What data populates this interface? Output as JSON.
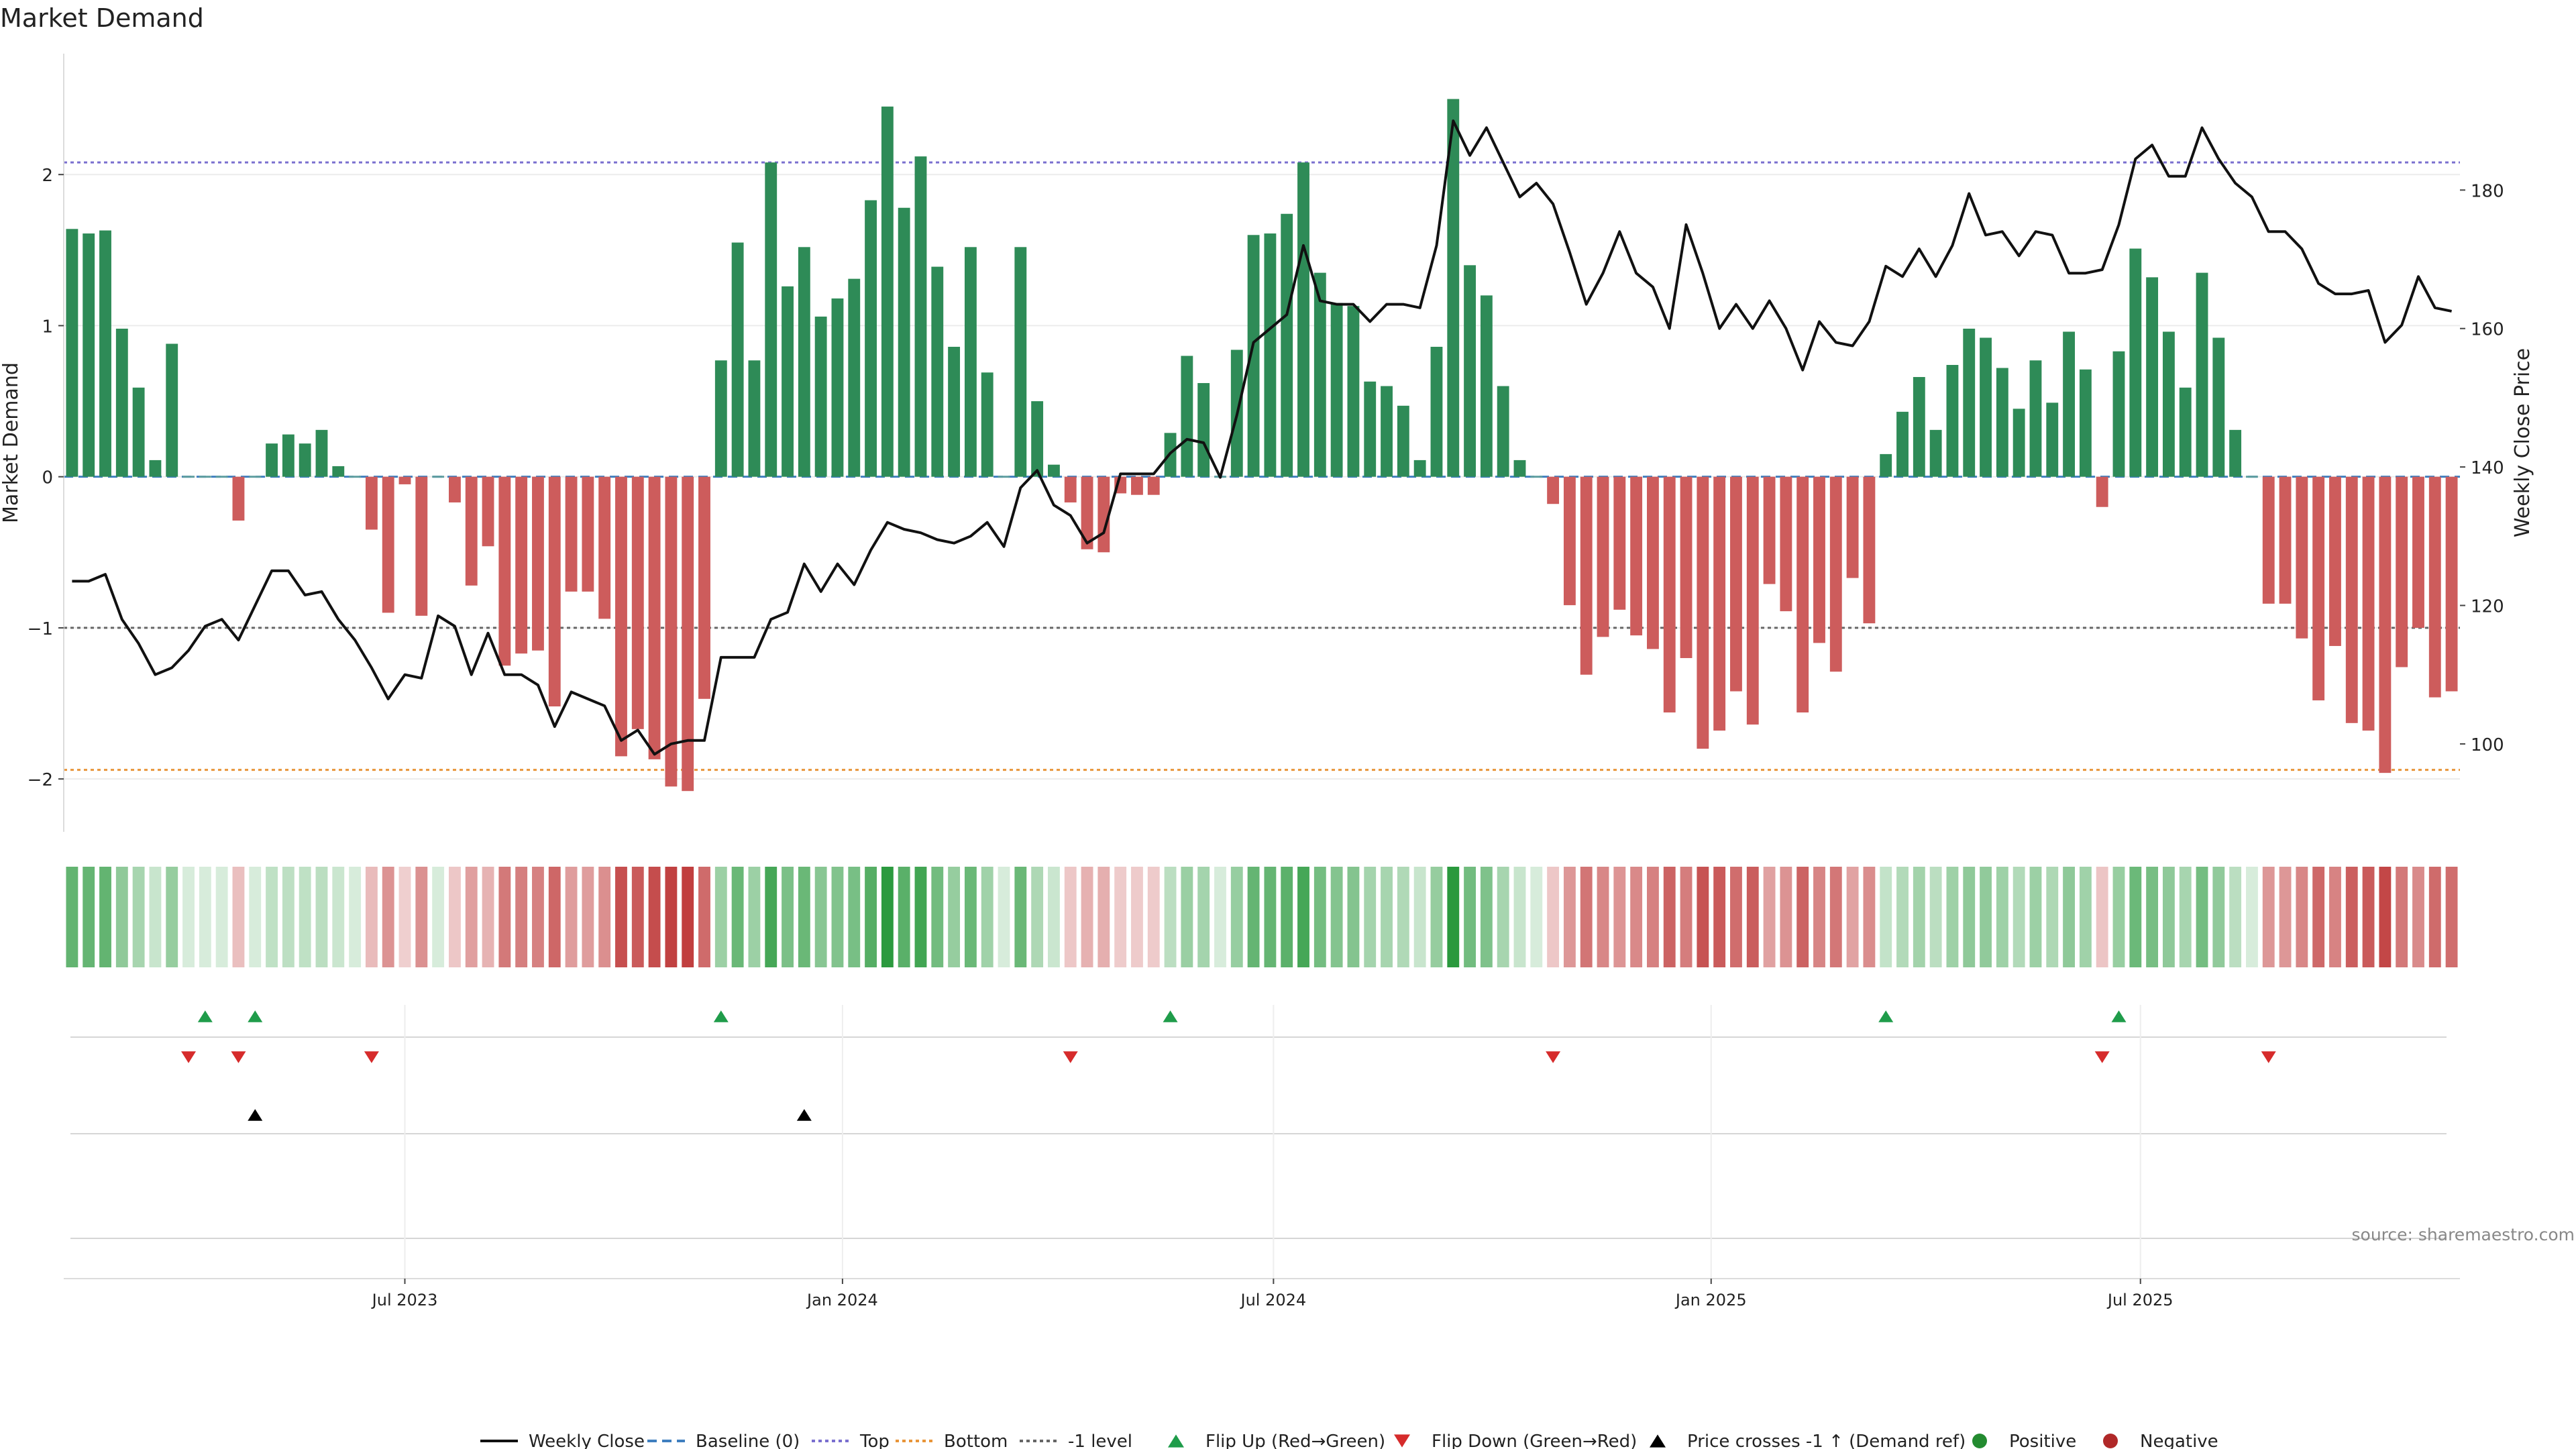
{
  "chart_data": {
    "type": "bar",
    "title": "Market Demand",
    "ylabel_left": "Market Demand",
    "ylabel_right": "Weekly Close Price",
    "source": "source: sharemaestro.com",
    "ylim_left": [
      -2.35,
      2.8
    ],
    "ylim_right": [
      87.3,
      199.7
    ],
    "yticks_left": [
      "−2",
      "−1",
      "0",
      "1",
      "2"
    ],
    "yticks_left_values": [
      -2,
      -1,
      0,
      1,
      2
    ],
    "yticks_right": [
      "100",
      "120",
      "140",
      "160",
      "180"
    ],
    "yticks_right_values": [
      100,
      120,
      140,
      160,
      180
    ],
    "x_labels": [
      "Jul 2023",
      "Jan 2024",
      "Jul 2024",
      "Jan 2025",
      "Jul 2025"
    ],
    "x_label_weeks": [
      20.5,
      46.8,
      72.7,
      99.0,
      124.8
    ],
    "reference_lines": {
      "top": 2.08,
      "bottom": -1.94,
      "minus_one": -1.0,
      "baseline": 0
    },
    "demand": [
      1.64,
      1.61,
      1.63,
      0.98,
      0.59,
      0.11,
      0.88,
      0,
      0,
      0,
      -0.29,
      0,
      0.22,
      0.28,
      0.22,
      0.31,
      0.07,
      0,
      -0.35,
      -0.9,
      -0.05,
      -0.92,
      0,
      -0.17,
      -0.72,
      -0.46,
      -1.25,
      -1.17,
      -1.15,
      -1.52,
      -0.76,
      -0.76,
      -0.94,
      -1.85,
      -1.67,
      -1.87,
      -2.05,
      -2.08,
      -1.47,
      0.77,
      1.55,
      0.77,
      2.08,
      1.26,
      1.52,
      1.06,
      1.18,
      1.31,
      1.83,
      2.45,
      1.78,
      2.12,
      1.39,
      0.86,
      1.52,
      0.69,
      0,
      1.52,
      0.5,
      0.08,
      -0.17,
      -0.48,
      -0.5,
      -0.11,
      -0.12,
      -0.12,
      0.29,
      0.8,
      0.62,
      0,
      0.84,
      1.6,
      1.61,
      1.74,
      2.08,
      1.35,
      1.15,
      1.13,
      0.63,
      0.6,
      0.47,
      0.11,
      0.86,
      2.5,
      1.4,
      1.2,
      0.6,
      0.11,
      0,
      -0.18,
      -0.85,
      -1.31,
      -1.06,
      -0.88,
      -1.05,
      -1.14,
      -1.56,
      -1.2,
      -1.8,
      -1.68,
      -1.42,
      -1.64,
      -0.71,
      -0.89,
      -1.56,
      -1.1,
      -1.29,
      -0.67,
      -0.97,
      0.15,
      0.43,
      0.66,
      0.31,
      0.74,
      0.98,
      0.92,
      0.72,
      0.45,
      0.77,
      0.49,
      0.96,
      0.71,
      -0.2,
      0.83,
      1.51,
      1.32,
      0.96,
      0.59,
      1.35,
      0.92,
      0.31,
      0,
      -0.84,
      -0.84,
      -1.07,
      -1.48,
      -1.12,
      -1.63,
      -1.68,
      -1.96,
      -1.26,
      -1.0,
      -1.46,
      -1.42
    ],
    "weekly_close": [
      123.5,
      123.5,
      124.5,
      118,
      114.5,
      110,
      111,
      113.5,
      117,
      118,
      115,
      120,
      125,
      125,
      121.5,
      122,
      118,
      115,
      111,
      106.5,
      110,
      109.5,
      118.5,
      117,
      110,
      116,
      110,
      110,
      108.5,
      102.5,
      107.5,
      106.5,
      105.5,
      100.5,
      102,
      98.5,
      100,
      100.5,
      100.5,
      112.5,
      112.5,
      112.5,
      118,
      119,
      126,
      122,
      126,
      123,
      128,
      132,
      131,
      130.5,
      129.5,
      129,
      130,
      132,
      128.5,
      137,
      139.5,
      134.5,
      133,
      129,
      130.5,
      139,
      139,
      139,
      142,
      144,
      143.5,
      138.5,
      147.5,
      158,
      160,
      162,
      172,
      164,
      163.5,
      163.5,
      161,
      163.5,
      163.5,
      163,
      172,
      190,
      185,
      189,
      184,
      179,
      181,
      178,
      171,
      163.5,
      168,
      174,
      168,
      166,
      160,
      175,
      168,
      160,
      163.5,
      160,
      164,
      160,
      154,
      161,
      158,
      157.5,
      161,
      169,
      167.5,
      171.5,
      167.5,
      172,
      179.5,
      173.5,
      174,
      170.5,
      174,
      173.5,
      168,
      168,
      168.5,
      175,
      184.5,
      186.5,
      182,
      182,
      189,
      184.5,
      181,
      179,
      174,
      174,
      171.5,
      166.5,
      165,
      165,
      165.5,
      158,
      160.5,
      167.5,
      163,
      162.5
    ],
    "flip_up_weeks": [
      8,
      11,
      39,
      66,
      109,
      123
    ],
    "flip_down_weeks": [
      7,
      10,
      18,
      60,
      89,
      122,
      132
    ],
    "price_cross_weeks": [
      11,
      44
    ],
    "legend": [
      {
        "label": "Weekly Close",
        "style": "solid-line",
        "color": "#111111"
      },
      {
        "label": "Baseline (0)",
        "style": "dashed-line",
        "color": "#3f7fbf"
      },
      {
        "label": "Top",
        "style": "dotted-line",
        "color": "#7a6fcf"
      },
      {
        "label": "Bottom",
        "style": "dotted-line",
        "color": "#e8953a"
      },
      {
        "label": "-1 level",
        "style": "dotted-line",
        "color": "#666666"
      },
      {
        "label": "Flip Up (Red→Green)",
        "style": "triangle-up",
        "color": "#1f9c4a"
      },
      {
        "label": "Flip Down (Green→Red)",
        "style": "triangle-down",
        "color": "#d62b2b"
      },
      {
        "label": "Price crosses -1 ↑ (Demand ref)",
        "style": "triangle-up",
        "color": "#000000"
      },
      {
        "label": "Positive",
        "style": "circle",
        "color": "#238b30"
      },
      {
        "label": "Negative",
        "style": "circle",
        "color": "#b02828"
      }
    ],
    "colors": {
      "positive_bar": "#2e8b57",
      "negative_bar": "#cd5c5c",
      "close_line": "#111111"
    }
  }
}
